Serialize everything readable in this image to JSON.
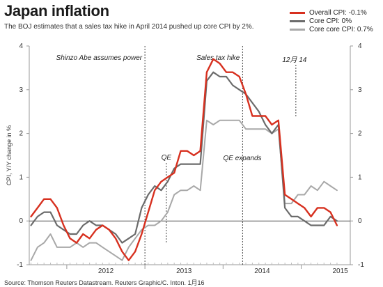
{
  "header": {
    "title": "Japan inflation",
    "subtitle": "The BOJ estimates that a sales tax hike in April 2014 pushed up core CPI by 2%."
  },
  "footer": {
    "source": "Source: Thomson Reuters Datastream.  Reuters Graphic/C. Inton. 1月16"
  },
  "colors": {
    "overall": "#d7301f",
    "core": "#6b6b6b",
    "corecore": "#a8a8a8"
  },
  "chart_data": {
    "type": "line",
    "ylabel": "CPI, Y/Y change in %",
    "ylim": [
      -1,
      4
    ],
    "yticks": [
      "4",
      "3",
      "2",
      "1",
      "0",
      "-1"
    ],
    "year_labels": [
      "2012",
      "2013",
      "2014",
      "2015"
    ],
    "x_start": "2011-07",
    "grid": false,
    "legend_position": "top-right",
    "annotations": [
      {
        "text": "Shinzo Abe assumes power",
        "at": "2012-12"
      },
      {
        "text": "Sales tax hike",
        "at": "2014-04"
      },
      {
        "text": "QE",
        "at": "2013-04"
      },
      {
        "text": "12月 14",
        "at": "2014-12"
      },
      {
        "text": "QE expands",
        "at": "2014-10"
      }
    ],
    "series": [
      {
        "name": "Overall CPI: -0.1%",
        "values": [
          0.1,
          0.3,
          0.5,
          0.5,
          0.3,
          -0.1,
          -0.4,
          -0.5,
          -0.3,
          -0.4,
          -0.2,
          -0.1,
          -0.2,
          -0.4,
          -0.7,
          -0.9,
          -0.7,
          -0.3,
          0.2,
          0.7,
          0.9,
          1.0,
          1.1,
          1.6,
          1.6,
          1.5,
          1.6,
          3.4,
          3.7,
          3.6,
          3.4,
          3.4,
          3.3,
          2.9,
          2.4,
          2.4,
          2.4,
          2.2,
          2.3,
          0.6,
          0.5,
          0.4,
          0.3,
          0.1,
          0.3,
          0.3,
          0.2,
          -0.1
        ]
      },
      {
        "name": "Core CPI: 0%",
        "values": [
          -0.1,
          0.1,
          0.2,
          0.2,
          -0.1,
          -0.2,
          -0.3,
          -0.3,
          -0.1,
          0.0,
          -0.1,
          -0.1,
          -0.2,
          -0.3,
          -0.5,
          -0.4,
          -0.3,
          0.3,
          0.6,
          0.8,
          0.7,
          0.9,
          1.2,
          1.3,
          1.3,
          1.3,
          1.3,
          3.2,
          3.4,
          3.3,
          3.3,
          3.1,
          3.0,
          2.9,
          2.7,
          2.5,
          2.2,
          2.0,
          2.2,
          0.3,
          0.1,
          0.1,
          0.0,
          -0.1,
          -0.1,
          -0.1,
          0.1,
          0.0
        ]
      },
      {
        "name": "Core core CPI: 0.7%",
        "values": [
          -0.9,
          -0.6,
          -0.5,
          -0.3,
          -0.6,
          -0.6,
          -0.6,
          -0.5,
          -0.6,
          -0.5,
          -0.5,
          -0.6,
          -0.7,
          -0.8,
          -0.9,
          -0.6,
          -0.4,
          -0.2,
          -0.1,
          -0.1,
          0.0,
          0.2,
          0.6,
          0.7,
          0.7,
          0.8,
          0.7,
          2.3,
          2.2,
          2.3,
          2.3,
          2.3,
          2.3,
          2.1,
          2.1,
          2.1,
          2.1,
          2.0,
          2.1,
          0.4,
          0.4,
          0.6,
          0.6,
          0.8,
          0.7,
          0.9,
          0.8,
          0.7
        ]
      }
    ]
  }
}
